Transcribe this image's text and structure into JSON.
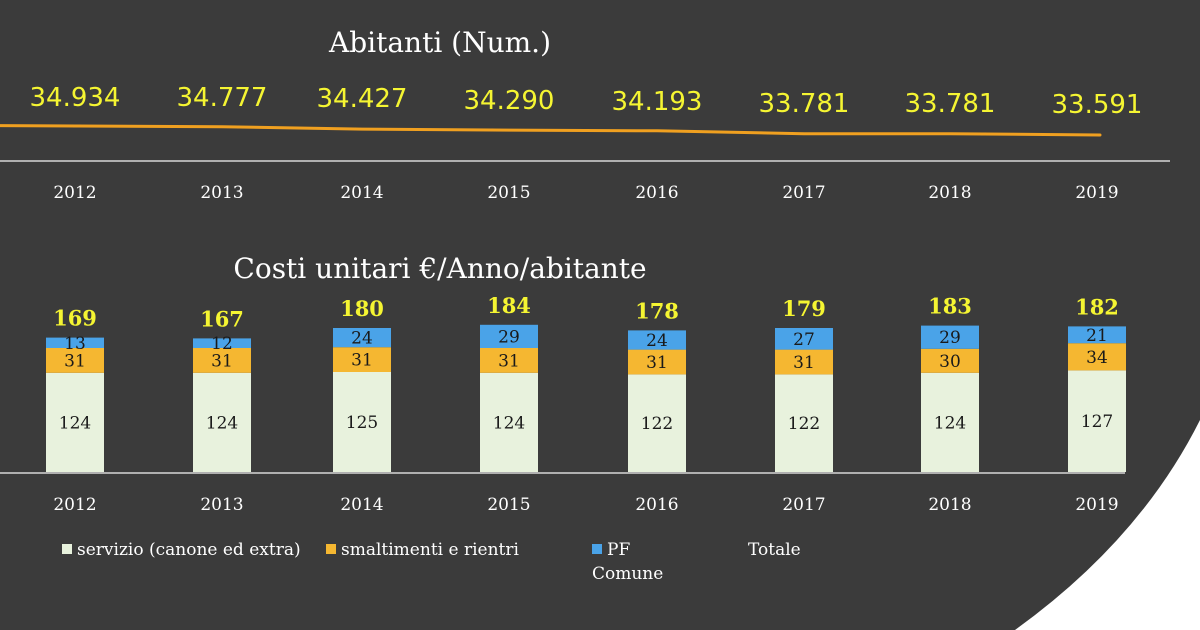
{
  "colors": {
    "background": "#3b3b3b",
    "curve_white": "#ffffff",
    "trend_line": "#f0a020",
    "population_values": "#f5f532",
    "totals": "#f5f532",
    "servizio": "#e8f2dd",
    "smaltimenti": "#f5b731",
    "pf_comune": "#4aa3e8",
    "axis_text": "#ffffff"
  },
  "chart_data": [
    {
      "type": "line",
      "title": "Abitanti (Num.)",
      "categories": [
        "2012",
        "2013",
        "2014",
        "2015",
        "2016",
        "2017",
        "2018",
        "2019"
      ],
      "values": [
        34934,
        34777,
        34427,
        34290,
        34193,
        33781,
        33781,
        33591
      ],
      "data_labels": [
        "34.934",
        "34.777",
        "34.427",
        "34.290",
        "34.193",
        "33.781",
        "33.781",
        "33.591"
      ]
    },
    {
      "type": "bar",
      "stacked": true,
      "title": "Costi unitari €/Anno/abitante",
      "categories": [
        "2012",
        "2013",
        "2014",
        "2015",
        "2016",
        "2017",
        "2018",
        "2019"
      ],
      "ylim": [
        0,
        200
      ],
      "series": [
        {
          "name": "servizio (canone ed extra)",
          "values": [
            124,
            124,
            125,
            124,
            122,
            122,
            124,
            127
          ],
          "color": "#e8f2dd"
        },
        {
          "name": "smaltimenti e rientri",
          "values": [
            31,
            31,
            31,
            31,
            31,
            31,
            30,
            34
          ],
          "color": "#f5b731"
        },
        {
          "name": "PF Comune",
          "values": [
            13,
            12,
            24,
            29,
            24,
            27,
            29,
            21
          ],
          "color": "#4aa3e8"
        }
      ],
      "totals_name": "Totale",
      "totals": [
        169,
        167,
        180,
        184,
        178,
        179,
        183,
        182
      ],
      "legend_position": "bottom"
    }
  ]
}
